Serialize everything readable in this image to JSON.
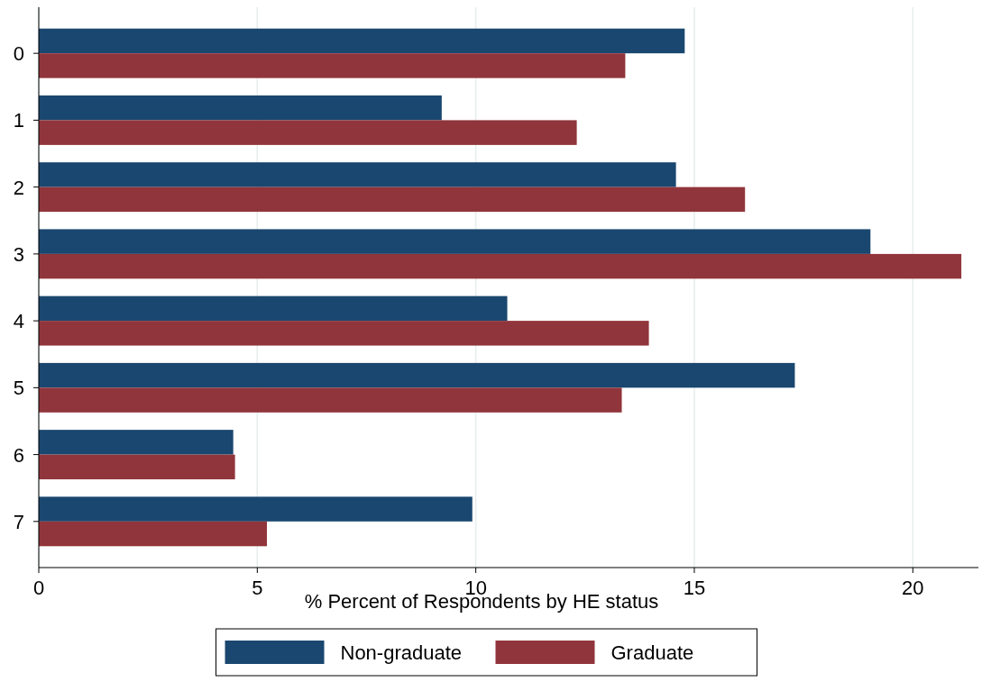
{
  "chart_data": {
    "type": "bar",
    "orientation": "horizontal",
    "xlabel": "% Percent of Respondents by HE status",
    "categories": [
      "0",
      "1",
      "2",
      "3",
      "4",
      "5",
      "6",
      "7"
    ],
    "series": [
      {
        "name": "Non-graduate",
        "color": "#1a476f",
        "values": [
          14.78,
          9.22,
          14.58,
          19.03,
          10.72,
          17.3,
          4.45,
          9.92
        ]
      },
      {
        "name": "Graduate",
        "color": "#90353b",
        "values": [
          13.42,
          12.31,
          16.16,
          21.11,
          13.96,
          13.34,
          4.49,
          5.22
        ]
      }
    ],
    "xlim": [
      0,
      21.5
    ],
    "xticks": [
      0,
      5,
      10,
      15,
      20
    ],
    "grid": "x",
    "legend": "bottom"
  }
}
